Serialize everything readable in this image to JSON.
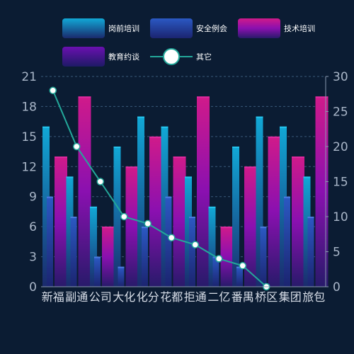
{
  "chart_data": {
    "type": "bar",
    "categories": [
      "新福",
      "副通",
      "公司",
      "大化",
      "化分",
      "花都",
      "拒通",
      "二亿",
      "番禺",
      "桥区",
      "集团",
      "旅包"
    ],
    "series": [
      {
        "name": "岗前培训",
        "kind": "bar",
        "axis": "left",
        "values": [
          16,
          11,
          8,
          14,
          17,
          16,
          11,
          8,
          14,
          17,
          16,
          11
        ]
      },
      {
        "name": "安全例会",
        "kind": "bar",
        "axis": "left",
        "values": [
          9,
          7,
          3,
          2,
          6,
          9,
          7,
          3,
          2,
          6,
          9,
          7
        ]
      },
      {
        "name": "技术培训",
        "kind": "bar",
        "axis": "left",
        "values": [
          13,
          19,
          6,
          12,
          15,
          13,
          19,
          6,
          12,
          15,
          13,
          19
        ]
      },
      {
        "name": "教育约谈",
        "kind": "bar",
        "axis": "left",
        "values": [
          0,
          0,
          0,
          0,
          0,
          0,
          0,
          0,
          0,
          0,
          0,
          0
        ]
      },
      {
        "name": "其它",
        "kind": "line",
        "axis": "right",
        "values": [
          28,
          20,
          15,
          10,
          9,
          7,
          6,
          4,
          3,
          0,
          0,
          0
        ]
      }
    ],
    "left_axis": {
      "min": 0,
      "max": 21,
      "ticks": [
        0,
        3,
        6,
        9,
        12,
        15,
        18,
        21
      ]
    },
    "right_axis": {
      "min": 0,
      "max": 30,
      "ticks": [
        0,
        5,
        10,
        15,
        20,
        25,
        30
      ]
    },
    "grid": true,
    "legend_position": "top",
    "colors": {
      "background": "#0b1c33",
      "gangqian": [
        "#11a8d6",
        "#1a2a6c"
      ],
      "anquan": [
        "#2b59c3",
        "#1b2470"
      ],
      "jishu": [
        "#a010a8",
        "#281a6a"
      ],
      "jiaoyu": [
        "#5b10a8",
        "#1e1a66"
      ],
      "line": "#23a89a",
      "marker_fill": "#ffffff"
    }
  }
}
